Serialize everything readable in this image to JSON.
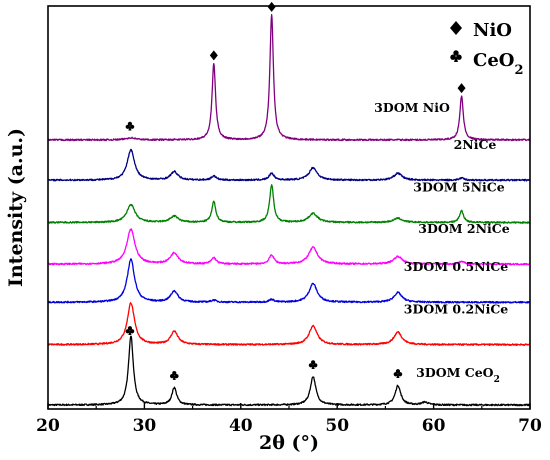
{
  "chart_data": {
    "type": "line",
    "title": "",
    "xlabel": "2θ (°)",
    "ylabel": "Intensity (a.u.)",
    "xlim": [
      20,
      70
    ],
    "xticks": [
      20,
      30,
      40,
      50,
      60,
      70
    ],
    "y_ticks_shown": false,
    "grid": false,
    "legend": {
      "placement": "top-right",
      "entries": [
        {
          "symbol": "♦",
          "label": "NiO"
        },
        {
          "symbol": "♣",
          "label": "CeO2",
          "label_main": "CeO",
          "label_sub": "2"
        }
      ]
    },
    "peak_markers": {
      "NiO": [
        37.2,
        43.2,
        62.9
      ],
      "CeO2": [
        28.5,
        33.1,
        47.5,
        56.3
      ]
    },
    "series": [
      {
        "name": "3DOM CeO2",
        "label_main": "3DOM CeO",
        "label_sub": "2",
        "color": "#000000",
        "baseline": 0.0,
        "peaks": [
          [
            28.6,
            1.0,
            0.3
          ],
          [
            33.1,
            0.25,
            0.3
          ],
          [
            47.5,
            0.41,
            0.35
          ],
          [
            56.3,
            0.28,
            0.35
          ],
          [
            59.1,
            0.04,
            0.4
          ]
        ]
      },
      {
        "name": "3DOM 0.2NiCe",
        "color": "#ff0000",
        "baseline": 0.87,
        "peaks": [
          [
            28.6,
            0.6,
            0.45
          ],
          [
            33.1,
            0.19,
            0.45
          ],
          [
            47.5,
            0.27,
            0.5
          ],
          [
            56.3,
            0.18,
            0.5
          ]
        ]
      },
      {
        "name": "3DOM 0.5NiCe",
        "color": "#0000dd",
        "baseline": 1.48,
        "peaks": [
          [
            28.6,
            0.62,
            0.45
          ],
          [
            33.1,
            0.16,
            0.45
          ],
          [
            37.2,
            0.03,
            0.3
          ],
          [
            43.2,
            0.04,
            0.3
          ],
          [
            47.5,
            0.27,
            0.5
          ],
          [
            56.3,
            0.14,
            0.5
          ]
        ]
      },
      {
        "name": "3DOM 2NiCe",
        "color": "#ff00ff",
        "baseline": 2.03,
        "peaks": [
          [
            28.6,
            0.5,
            0.5
          ],
          [
            33.1,
            0.16,
            0.5
          ],
          [
            37.2,
            0.09,
            0.3
          ],
          [
            43.2,
            0.13,
            0.3
          ],
          [
            47.5,
            0.24,
            0.55
          ],
          [
            56.3,
            0.11,
            0.55
          ],
          [
            62.9,
            0.04,
            0.3
          ]
        ]
      },
      {
        "name": "3DOM 5NiCe",
        "color": "#008000",
        "baseline": 2.63,
        "peaks": [
          [
            28.6,
            0.26,
            0.5
          ],
          [
            33.1,
            0.09,
            0.5
          ],
          [
            37.2,
            0.3,
            0.25
          ],
          [
            43.2,
            0.54,
            0.25
          ],
          [
            47.5,
            0.13,
            0.55
          ],
          [
            56.3,
            0.06,
            0.55
          ],
          [
            62.9,
            0.17,
            0.25
          ]
        ]
      },
      {
        "name": "2NiCe",
        "color": "#000080",
        "baseline": 3.24,
        "peaks": [
          [
            28.6,
            0.44,
            0.45
          ],
          [
            33.1,
            0.12,
            0.45
          ],
          [
            37.2,
            0.06,
            0.3
          ],
          [
            43.2,
            0.1,
            0.3
          ],
          [
            47.5,
            0.18,
            0.5
          ],
          [
            56.3,
            0.1,
            0.5
          ],
          [
            62.9,
            0.03,
            0.3
          ]
        ]
      },
      {
        "name": "3DOM NiO",
        "color": "#800080",
        "baseline": 3.82,
        "peaks": [
          [
            28.6,
            0.03,
            0.6
          ],
          [
            37.2,
            1.1,
            0.22
          ],
          [
            43.2,
            1.8,
            0.22
          ],
          [
            62.9,
            0.63,
            0.22
          ]
        ]
      }
    ]
  }
}
